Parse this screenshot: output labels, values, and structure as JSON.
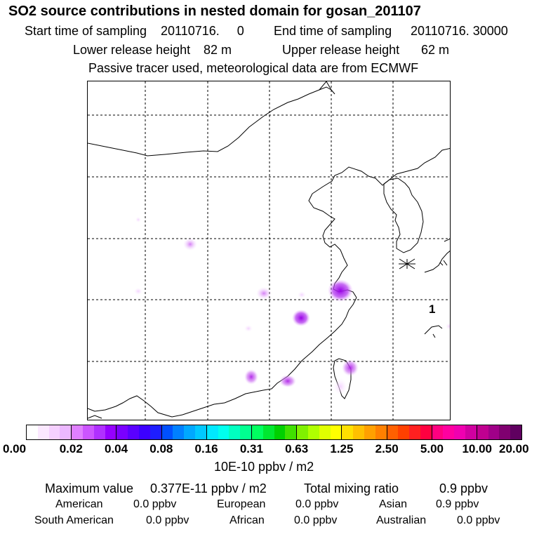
{
  "header": {
    "title": "SO2 source contributions in nested domain for gosan_201107",
    "start_label": "Start time of sampling",
    "start_value": "20110716.     0",
    "end_label": "End time of sampling",
    "end_value": "20110716. 30000",
    "lower_label": "Lower release height",
    "lower_value": "82 m",
    "upper_label": "Upper release height",
    "upper_value": "62 m",
    "note": "Passive tracer used, meteorological data are from ECMWF"
  },
  "map": {
    "marker_label": "1",
    "receptor_symbol": "station-star",
    "hotspots": [
      {
        "name": "hotspot-shanghai",
        "intensity": "high",
        "color": "#a000e0"
      },
      {
        "name": "hotspot-east-central",
        "intensity": "high",
        "color": "#a000e0"
      },
      {
        "name": "hotspot-taiwan",
        "intensity": "medium",
        "color": "#b020e8"
      },
      {
        "name": "hotspot-southeast-coast",
        "intensity": "medium",
        "color": "#b020e8"
      },
      {
        "name": "hotspot-south-inland",
        "intensity": "medium",
        "color": "#c040ee"
      },
      {
        "name": "hotspot-central",
        "intensity": "low",
        "color": "#d070f4"
      },
      {
        "name": "hotspot-north-inland",
        "intensity": "low",
        "color": "#d070f4"
      }
    ]
  },
  "colorbar": {
    "ticks": [
      "0.00",
      "0.02",
      "0.04",
      "0.08",
      "0.16",
      "0.31",
      "0.63",
      "1.25",
      "2.50",
      "5.00",
      "10.00",
      "20.00"
    ],
    "colors": [
      "#ffffff",
      "#fbe8ff",
      "#f5d0ff",
      "#ecb8ff",
      "#e080ff",
      "#cc55ff",
      "#b030ff",
      "#9500ff",
      "#7a00ff",
      "#5a00ff",
      "#3c00ff",
      "#1e1eff",
      "#0050ff",
      "#0080ff",
      "#00a8ff",
      "#00c8ff",
      "#00e8ff",
      "#00ffee",
      "#00ffc0",
      "#00ff90",
      "#00ff60",
      "#00e830",
      "#00d000",
      "#40e000",
      "#80f000",
      "#b0ff00",
      "#e0ff00",
      "#ffff00",
      "#ffe000",
      "#ffc000",
      "#ffa000",
      "#ff8000",
      "#ff6000",
      "#ff4000",
      "#ff2020",
      "#ff0040",
      "#ff0080",
      "#ff00a0",
      "#f000b0",
      "#d000a0",
      "#c00090",
      "#a00088",
      "#800070",
      "#600060"
    ],
    "unit": "10E-10 ppbv / m2"
  },
  "stats": {
    "max_label": "Maximum value",
    "max_value": "0.377E-11 ppbv / m2",
    "total_label": "Total mixing ratio",
    "total_value": "0.9 ppbv",
    "american_label": "American",
    "american_value": "0.0 ppbv",
    "european_label": "European",
    "european_value": "0.0 ppbv",
    "asian_label": "Asian",
    "asian_value": "0.9 ppbv",
    "south_american_label": "South American",
    "south_american_value": "0.0 ppbv",
    "african_label": "African",
    "african_value": "0.0 ppbv",
    "australian_label": "Australian",
    "australian_value": "0.0 ppbv"
  }
}
